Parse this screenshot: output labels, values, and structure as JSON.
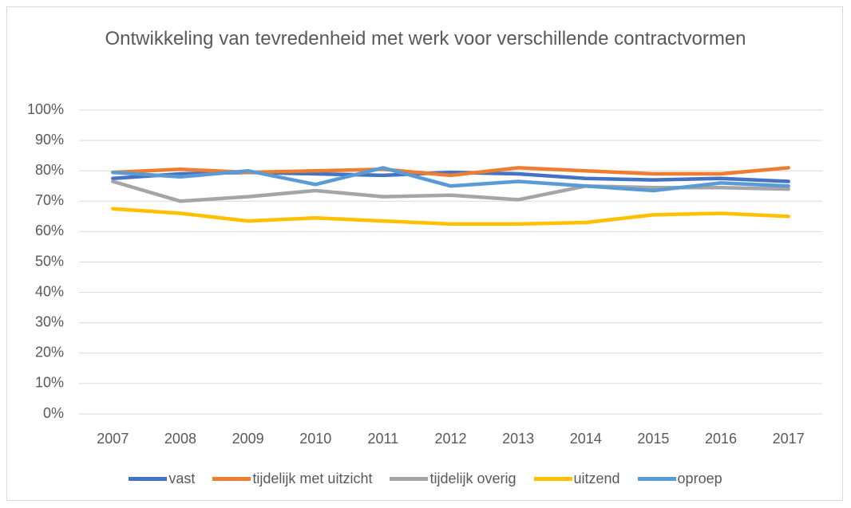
{
  "chart_data": {
    "type": "line",
    "title": "Ontwikkeling van tevredenheid met werk voor verschillende contractvormen",
    "categories": [
      "2007",
      "2008",
      "2009",
      "2010",
      "2011",
      "2012",
      "2013",
      "2014",
      "2015",
      "2016",
      "2017"
    ],
    "series": [
      {
        "name": "vast",
        "color": "#4472c4",
        "values": [
          77.5,
          79,
          79.5,
          79,
          78.5,
          79.5,
          79,
          77.5,
          77,
          77.5,
          76.5
        ]
      },
      {
        "name": "tijdelijk met uitzicht",
        "color": "#ed7d31",
        "values": [
          79.5,
          80.5,
          79.5,
          80,
          80.5,
          78.5,
          81,
          80,
          79,
          79,
          81
        ]
      },
      {
        "name": "tijdelijk overig",
        "color": "#a5a5a5",
        "values": [
          76.5,
          70,
          71.5,
          73.5,
          71.5,
          72,
          70.5,
          75,
          74.5,
          74.5,
          74
        ]
      },
      {
        "name": "uitzend",
        "color": "#ffc000",
        "values": [
          67.5,
          66,
          63.5,
          64.5,
          63.5,
          62.5,
          62.5,
          63,
          65.5,
          66,
          65
        ]
      },
      {
        "name": "oproep",
        "color": "#5b9bd5",
        "values": [
          79.5,
          78,
          80,
          75.5,
          81,
          75,
          76.5,
          75,
          73.5,
          76,
          75
        ]
      }
    ],
    "ylim": [
      0,
      100
    ],
    "yticks": [
      {
        "value": 0,
        "label": "0%"
      },
      {
        "value": 10,
        "label": "10%"
      },
      {
        "value": 20,
        "label": "20%"
      },
      {
        "value": 30,
        "label": "30%"
      },
      {
        "value": 40,
        "label": "40%"
      },
      {
        "value": 50,
        "label": "50%"
      },
      {
        "value": 60,
        "label": "60%"
      },
      {
        "value": 70,
        "label": "70%"
      },
      {
        "value": 80,
        "label": "80%"
      },
      {
        "value": 90,
        "label": "90%"
      },
      {
        "value": 100,
        "label": "100%"
      }
    ],
    "grid": true,
    "legend": "bottom"
  }
}
